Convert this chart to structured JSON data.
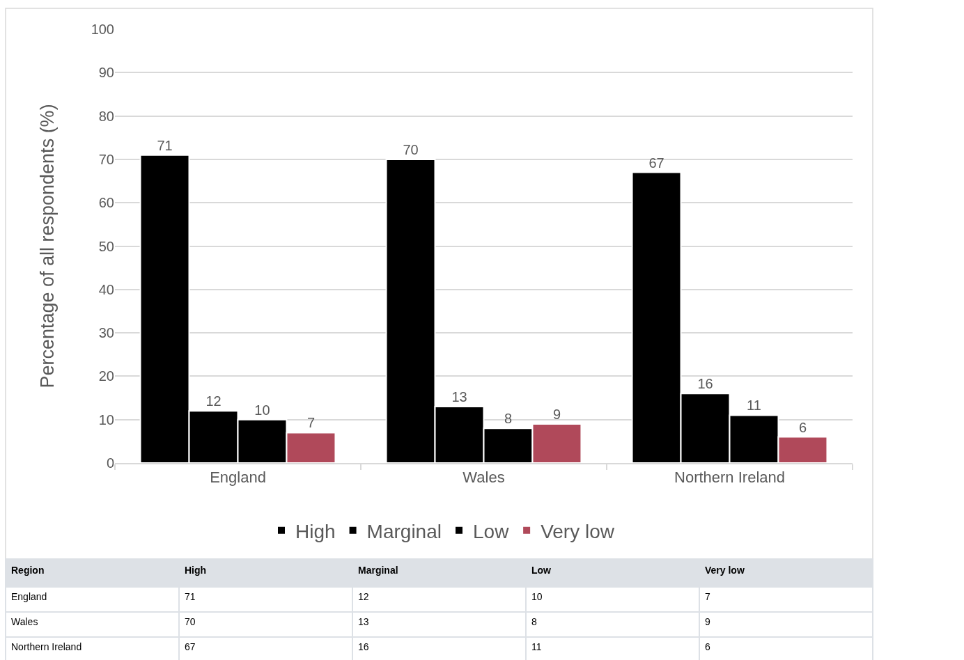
{
  "chart_data": [
    {
      "type": "bar",
      "ylabel": "Percentage of all respondents (%)",
      "categories": [
        "England",
        "Wales",
        "Northern Ireland"
      ],
      "series": [
        {
          "name": "High",
          "color": "#000000",
          "values": [
            71,
            70,
            67
          ]
        },
        {
          "name": "Marginal",
          "color": "#000000",
          "values": [
            12,
            13,
            16
          ]
        },
        {
          "name": "Low",
          "color": "#000000",
          "values": [
            10,
            8,
            11
          ]
        },
        {
          "name": "Very low",
          "color": "#b0495a",
          "values": [
            7,
            9,
            6
          ]
        }
      ],
      "ylim": [
        0,
        100
      ],
      "yticks": [
        0,
        10,
        20,
        30,
        40,
        50,
        60,
        70,
        80,
        90,
        100
      ],
      "grid": "y",
      "legend": "bottom",
      "data_labels": true
    },
    {
      "type": "other",
      "annotations": [
        "Region"
      ],
      "categories": [
        "England",
        "Wales",
        "Northern Ireland"
      ],
      "series": [
        {
          "name": "High",
          "values": [
            71,
            70,
            67
          ]
        },
        {
          "name": "Marginal",
          "values": [
            12,
            13,
            16
          ]
        },
        {
          "name": "Low",
          "values": [
            10,
            8,
            11
          ]
        },
        {
          "name": "Very low",
          "values": [
            7,
            9,
            6
          ]
        }
      ],
      "data_labels": true
    }
  ]
}
